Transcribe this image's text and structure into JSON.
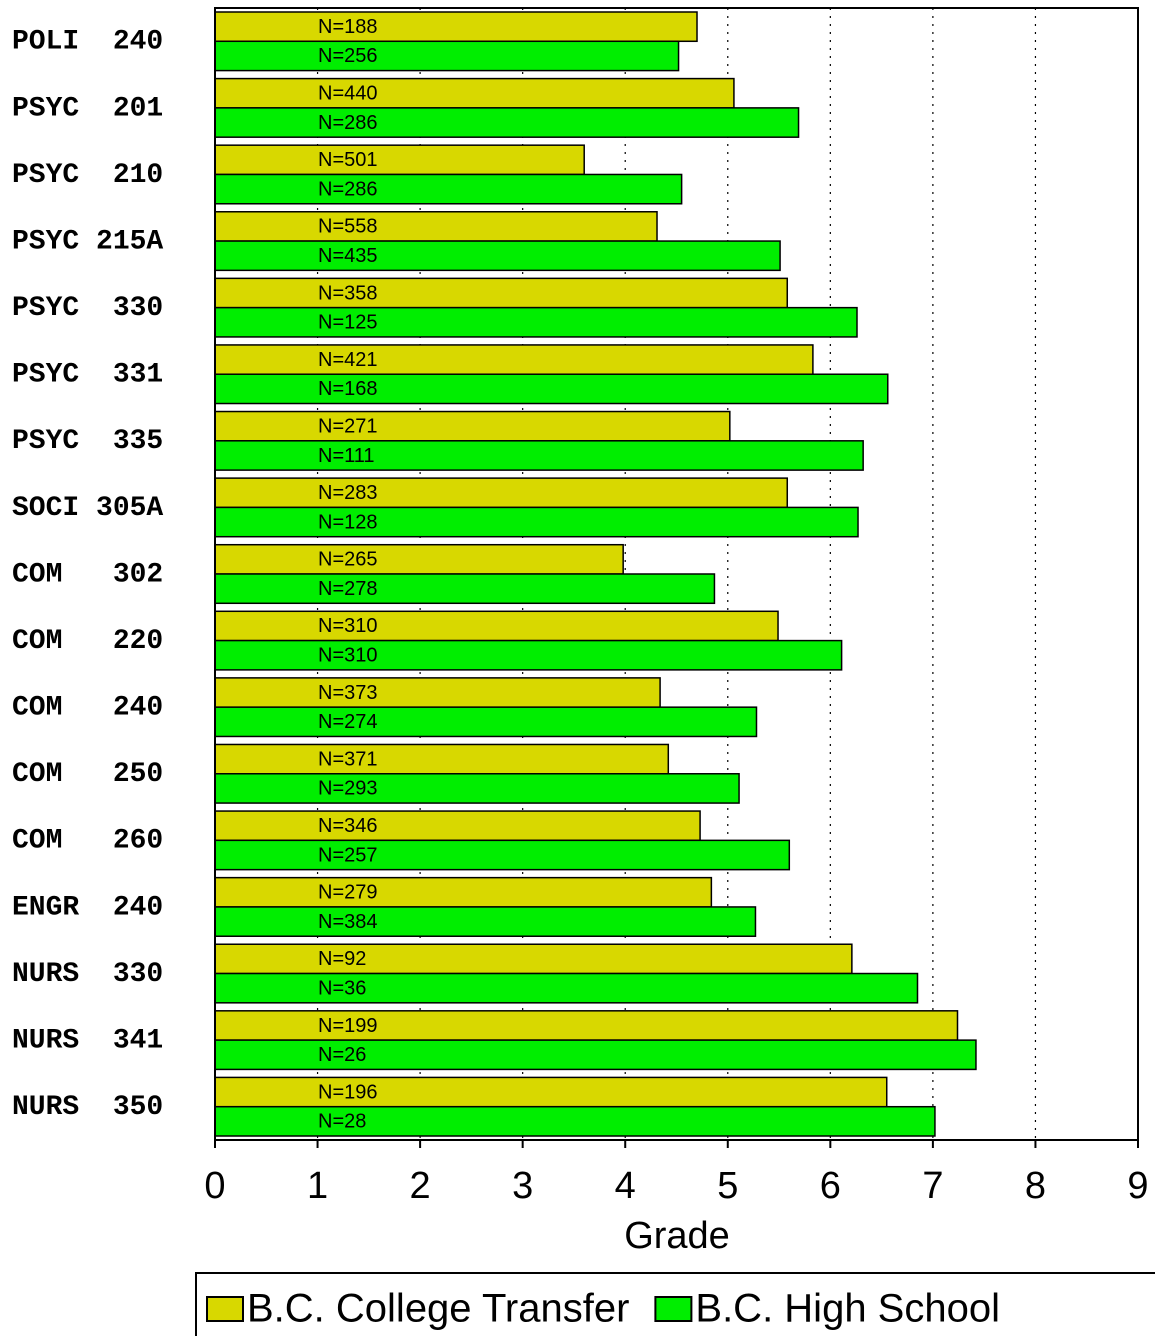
{
  "chart_data": {
    "type": "bar",
    "orientation": "horizontal",
    "x_label": "Grade",
    "categories": [
      "POLI  240",
      "PSYC  201",
      "PSYC  210",
      "PSYC 215A",
      "PSYC  330",
      "PSYC  331",
      "PSYC  335",
      "SOCI 305A",
      "COM   302",
      "COM   220",
      "COM   240",
      "COM   250",
      "COM   260",
      "ENGR  240",
      "NURS  330",
      "NURS  341",
      "NURS  350"
    ],
    "series": [
      {
        "name": "B.C. College Transfer",
        "color": "#d8d800",
        "values": [
          4.7,
          5.06,
          3.6,
          4.31,
          5.58,
          5.83,
          5.02,
          5.58,
          3.98,
          5.49,
          4.34,
          4.42,
          4.73,
          4.84,
          6.21,
          7.24,
          6.55
        ],
        "annotations": [
          "N=188",
          "N=440",
          "N=501",
          "N=558",
          "N=358",
          "N=421",
          "N=271",
          "N=283",
          "N=265",
          "N=310",
          "N=373",
          "N=371",
          "N=346",
          "N=279",
          "N=92",
          "N=199",
          "N=196"
        ]
      },
      {
        "name": "B.C. High School",
        "color": "#00ee00",
        "values": [
          4.52,
          5.69,
          4.55,
          5.51,
          6.26,
          6.56,
          6.32,
          6.27,
          4.87,
          6.11,
          5.28,
          5.11,
          5.6,
          5.27,
          6.85,
          7.42,
          7.02
        ],
        "annotations": [
          "N=256",
          "N=286",
          "N=286",
          "N=435",
          "N=125",
          "N=168",
          "N=111",
          "N=128",
          "N=278",
          "N=310",
          "N=274",
          "N=293",
          "N=257",
          "N=384",
          "N=36",
          "N=26",
          "N=28"
        ]
      }
    ],
    "xlim": [
      0,
      9
    ],
    "xticks": [
      0,
      1,
      2,
      3,
      4,
      5,
      6,
      7,
      8,
      9
    ],
    "grid": true,
    "legend": "bottom"
  }
}
